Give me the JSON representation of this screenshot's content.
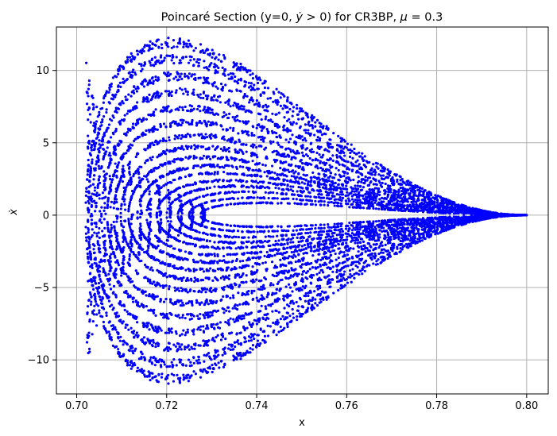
{
  "chart_data": {
    "type": "scatter",
    "title": "Poincaré Section (y=0, ẏ > 0) for CR3BP, μ = 0.3",
    "title_parts": {
      "prefix": "Poincaré Section (y=0, ",
      "ydot": "ẏ",
      "gt": " > 0) for CR3BP, ",
      "mu": "μ",
      "suffix": " = 0.3"
    },
    "xlabel": "x",
    "ylabel": "ẋ",
    "xlim": [
      0.6955,
      0.8048
    ],
    "ylim": [
      -12.35,
      13.0
    ],
    "xticks": [
      0.7,
      0.72,
      0.74,
      0.76,
      0.78,
      0.8
    ],
    "xtick_labels": [
      "0.70",
      "0.72",
      "0.74",
      "0.76",
      "0.78",
      "0.80"
    ],
    "yticks": [
      -10,
      -5,
      0,
      5,
      10
    ],
    "ytick_labels": [
      "−10",
      "−5",
      "0",
      "5",
      "10"
    ],
    "grid": true,
    "series": [
      {
        "color": "#0000ff",
        "curves": [
          {
            "x0": 0.7275,
            "x1": 0.8,
            "ymax": 0.85
          },
          {
            "x0": 0.725,
            "x1": 0.8,
            "ymax": 1.2
          },
          {
            "x0": 0.7225,
            "x1": 0.8,
            "ymax": 1.6
          },
          {
            "x0": 0.72,
            "x1": 0.8,
            "ymax": 2.0
          },
          {
            "x0": 0.7178,
            "x1": 0.8,
            "ymax": 2.4
          },
          {
            "x0": 0.7155,
            "x1": 0.8,
            "ymax": 2.9
          },
          {
            "x0": 0.7135,
            "x1": 0.8,
            "ymax": 3.4
          },
          {
            "x0": 0.7115,
            "x1": 0.8,
            "ymax": 4.0
          },
          {
            "x0": 0.7098,
            "x1": 0.8,
            "ymax": 4.7
          },
          {
            "x0": 0.7082,
            "x1": 0.8,
            "ymax": 5.5
          },
          {
            "x0": 0.7068,
            "x1": 0.8,
            "ymax": 6.4
          },
          {
            "x0": 0.7055,
            "x1": 0.8,
            "ymax": 7.4
          },
          {
            "x0": 0.7043,
            "x1": 0.8,
            "ymax": 8.5
          },
          {
            "x0": 0.7033,
            "x1": 0.8,
            "ymax": 9.6
          },
          {
            "x0": 0.7025,
            "x1": 0.8,
            "ymax": 10.8
          },
          {
            "x0": 0.702,
            "x1": 0.8,
            "ymax": 11.9
          }
        ]
      }
    ]
  }
}
